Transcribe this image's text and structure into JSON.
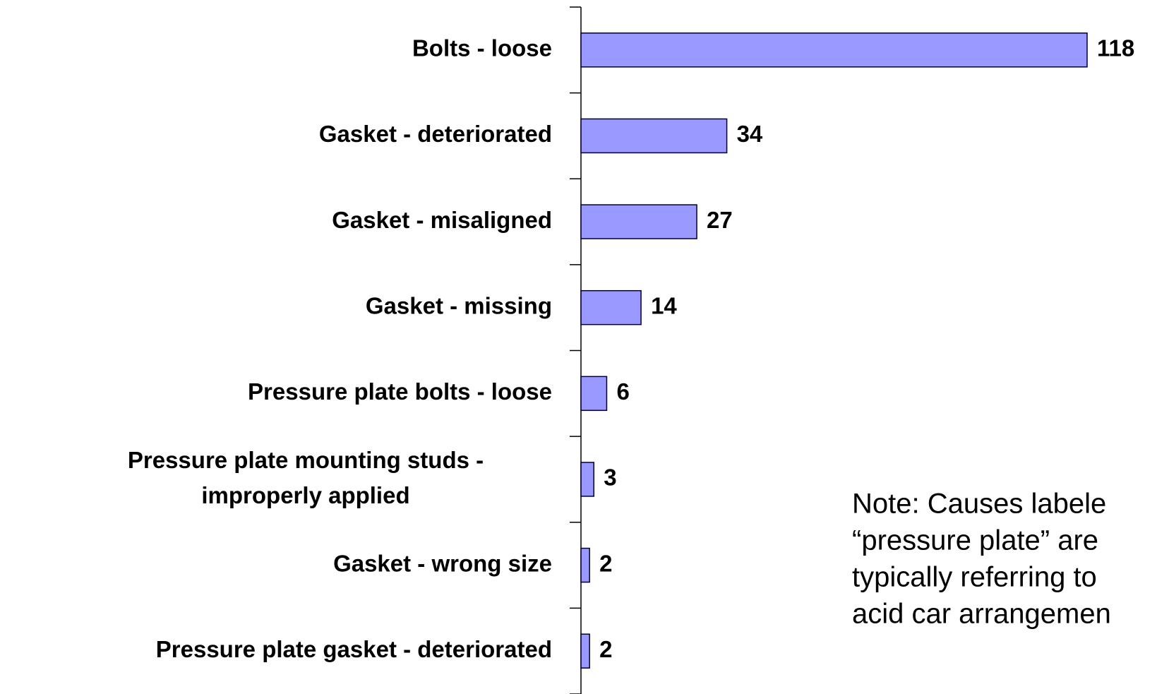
{
  "chart_data": {
    "type": "bar",
    "orientation": "horizontal",
    "categories": [
      "Bolts - loose",
      "Gasket - deteriorated",
      "Gasket - misaligned",
      "Gasket - missing",
      "Pressure plate bolts - loose",
      "Pressure plate mounting studs -\nimproperly applied",
      "Gasket - wrong size",
      "Pressure plate gasket - deteriorated"
    ],
    "values": [
      118,
      34,
      27,
      14,
      6,
      3,
      2,
      2
    ],
    "color": "#9999ff",
    "note": [
      "Note: Causes labele",
      "“pressure plate” are",
      "typically referring to",
      "acid car arrangemen"
    ]
  }
}
